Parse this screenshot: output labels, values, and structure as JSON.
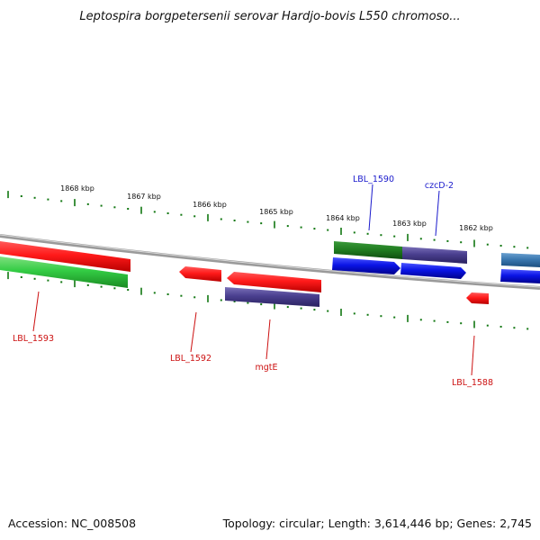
{
  "title": "Leptospira borgpetersenii serovar Hardjo-bovis L550 chromoso...",
  "footer": {
    "accession": "Accession: NC_008508",
    "topology": "Topology: circular; Length: 3,614,446 bp; Genes: 2,745"
  },
  "scale_labels": [
    "1868 kbp",
    "1867 kbp",
    "1866 kbp",
    "1865 kbp",
    "1864 kbp",
    "1863 kbp",
    "1862 kbp"
  ],
  "gene_labels": [
    {
      "text": "LBL_1590",
      "color": "#1a1acc"
    },
    {
      "text": "czcD-2",
      "color": "#1a1acc"
    },
    {
      "text": "LBL_1593",
      "color": "#cc1111"
    },
    {
      "text": "LBL_1592",
      "color": "#cc1111"
    },
    {
      "text": "mgtE",
      "color": "#cc1111"
    },
    {
      "text": "LBL_1588",
      "color": "#cc1111"
    }
  ],
  "colors": {
    "red": "#ff1a1a",
    "green": "#33cc44",
    "dark_green": "#1f7a1f",
    "blue": "#0a14e6",
    "purple": "#4a3f8f",
    "steel_blue": "#3a78b0",
    "tick": "#117711",
    "backbone": "#8a8a8a"
  }
}
